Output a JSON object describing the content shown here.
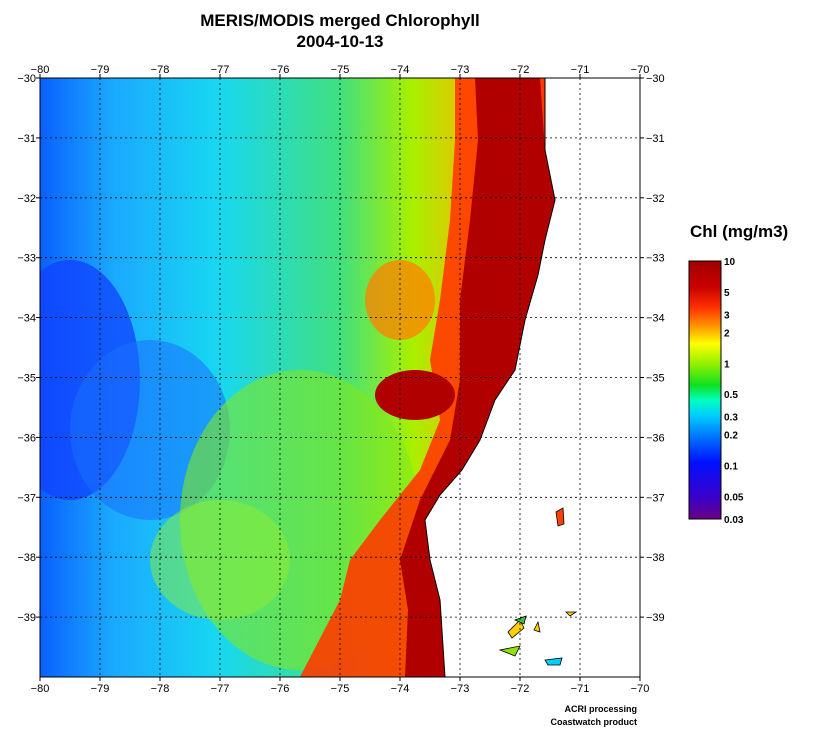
{
  "title": {
    "line1": "MERIS/MODIS merged Chlorophyll",
    "line2": "2004-10-13"
  },
  "map": {
    "lon_range": [
      -80,
      -70
    ],
    "lat_range": [
      -40,
      -30
    ],
    "lon_ticks": [
      -80,
      -79,
      -78,
      -77,
      -76,
      -75,
      -74,
      -73,
      -72,
      -71,
      -70
    ],
    "lat_ticks": [
      -30,
      -31,
      -32,
      -33,
      -34,
      -35,
      -36,
      -37,
      -38,
      -39
    ],
    "gridlines": true,
    "land_color": "#ffffff"
  },
  "legend": {
    "title": "Chl (mg/m3)",
    "labels": [
      {
        "text": "10",
        "value": 10
      },
      {
        "text": "5",
        "value": 5
      },
      {
        "text": "3",
        "value": 3
      },
      {
        "text": "2",
        "value": 2
      },
      {
        "text": "1",
        "value": 1
      },
      {
        "text": "0.5",
        "value": 0.5
      },
      {
        "text": "0.3",
        "value": 0.3
      },
      {
        "text": "0.2",
        "value": 0.2
      },
      {
        "text": "0.1",
        "value": 0.1
      },
      {
        "text": "0.05",
        "value": 0.05
      },
      {
        "text": "0.03",
        "value": 0.03
      }
    ],
    "range": [
      0.03,
      10
    ],
    "scale": "log",
    "colors": [
      "#6a0080",
      "#3c00c8",
      "#0010ff",
      "#0080ff",
      "#00ccff",
      "#00ffc0",
      "#10e020",
      "#90f000",
      "#ffff00",
      "#ffa000",
      "#ff3000",
      "#c80000",
      "#a00000"
    ]
  },
  "credits": {
    "line1": "ACRI processing",
    "line2": "Coastwatch product"
  }
}
